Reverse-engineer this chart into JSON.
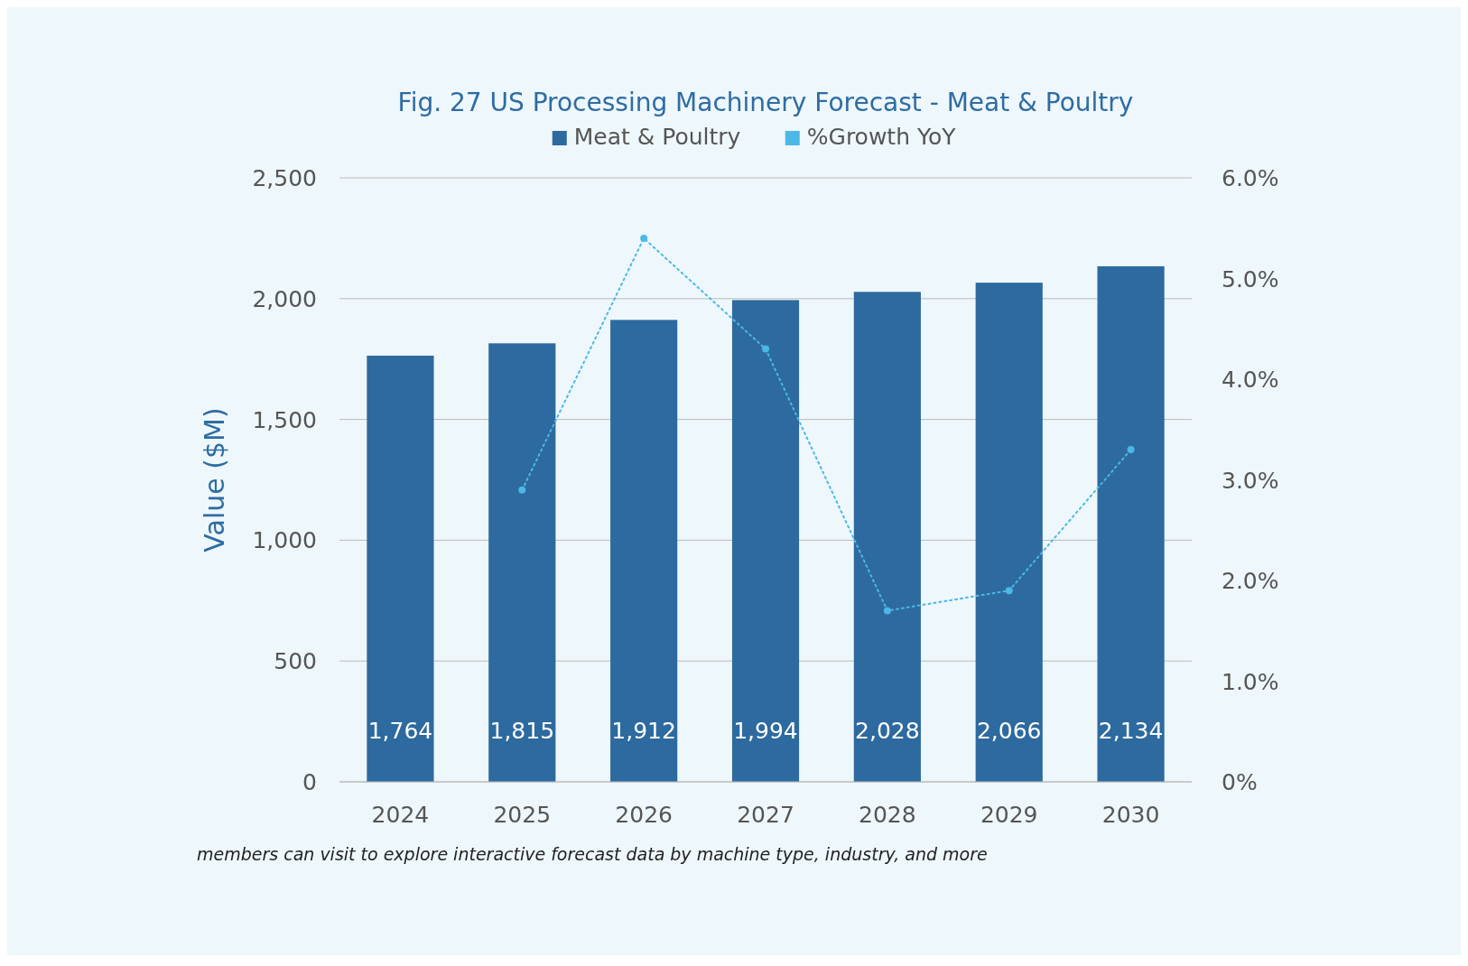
{
  "chart_data": {
    "type": "bar",
    "title": "Fig. 27 US Processing Machinery Forecast - Meat & Poultry",
    "ylabel": "Value ($M)",
    "categories": [
      "2024",
      "2025",
      "2026",
      "2027",
      "2028",
      "2029",
      "2030"
    ],
    "series": [
      {
        "name": "Meat & Poultry",
        "color": "#2d6a9f",
        "values": [
          1764,
          1815,
          1912,
          1994,
          2028,
          2066,
          2134
        ],
        "value_labels": [
          "1,764",
          "1,815",
          "1,912",
          "1,994",
          "2,028",
          "2,066",
          "2,134"
        ]
      },
      {
        "name": "%Growth YoY",
        "type": "line",
        "axis": "y2",
        "color": "#4bb8e8",
        "marker": "circle",
        "line_style": "dotted",
        "values": [
          null,
          2.9,
          5.4,
          4.3,
          1.7,
          1.9,
          3.3
        ]
      }
    ],
    "ylim": [
      0,
      2500
    ],
    "yticks": [
      {
        "value": 0,
        "label": "0"
      },
      {
        "value": 500,
        "label": "500"
      },
      {
        "value": 1000,
        "label": "1,000"
      },
      {
        "value": 1500,
        "label": "1,500"
      },
      {
        "value": 2000,
        "label": "2,000"
      },
      {
        "value": 2500,
        "label": "2,500"
      }
    ],
    "y2lim": [
      0,
      6
    ],
    "y2ticks": [
      {
        "value": 0,
        "label": "0%"
      },
      {
        "value": 1,
        "label": "1.0%"
      },
      {
        "value": 2,
        "label": "2.0%"
      },
      {
        "value": 3,
        "label": "3.0%"
      },
      {
        "value": 4,
        "label": "4.0%"
      },
      {
        "value": 5,
        "label": "5.0%"
      },
      {
        "value": 6,
        "label": "6.0%"
      }
    ],
    "grid": "y",
    "legend": "top",
    "annotations": [
      "members can visit to explore interactive forecast data by machine type, industry, and more"
    ]
  }
}
